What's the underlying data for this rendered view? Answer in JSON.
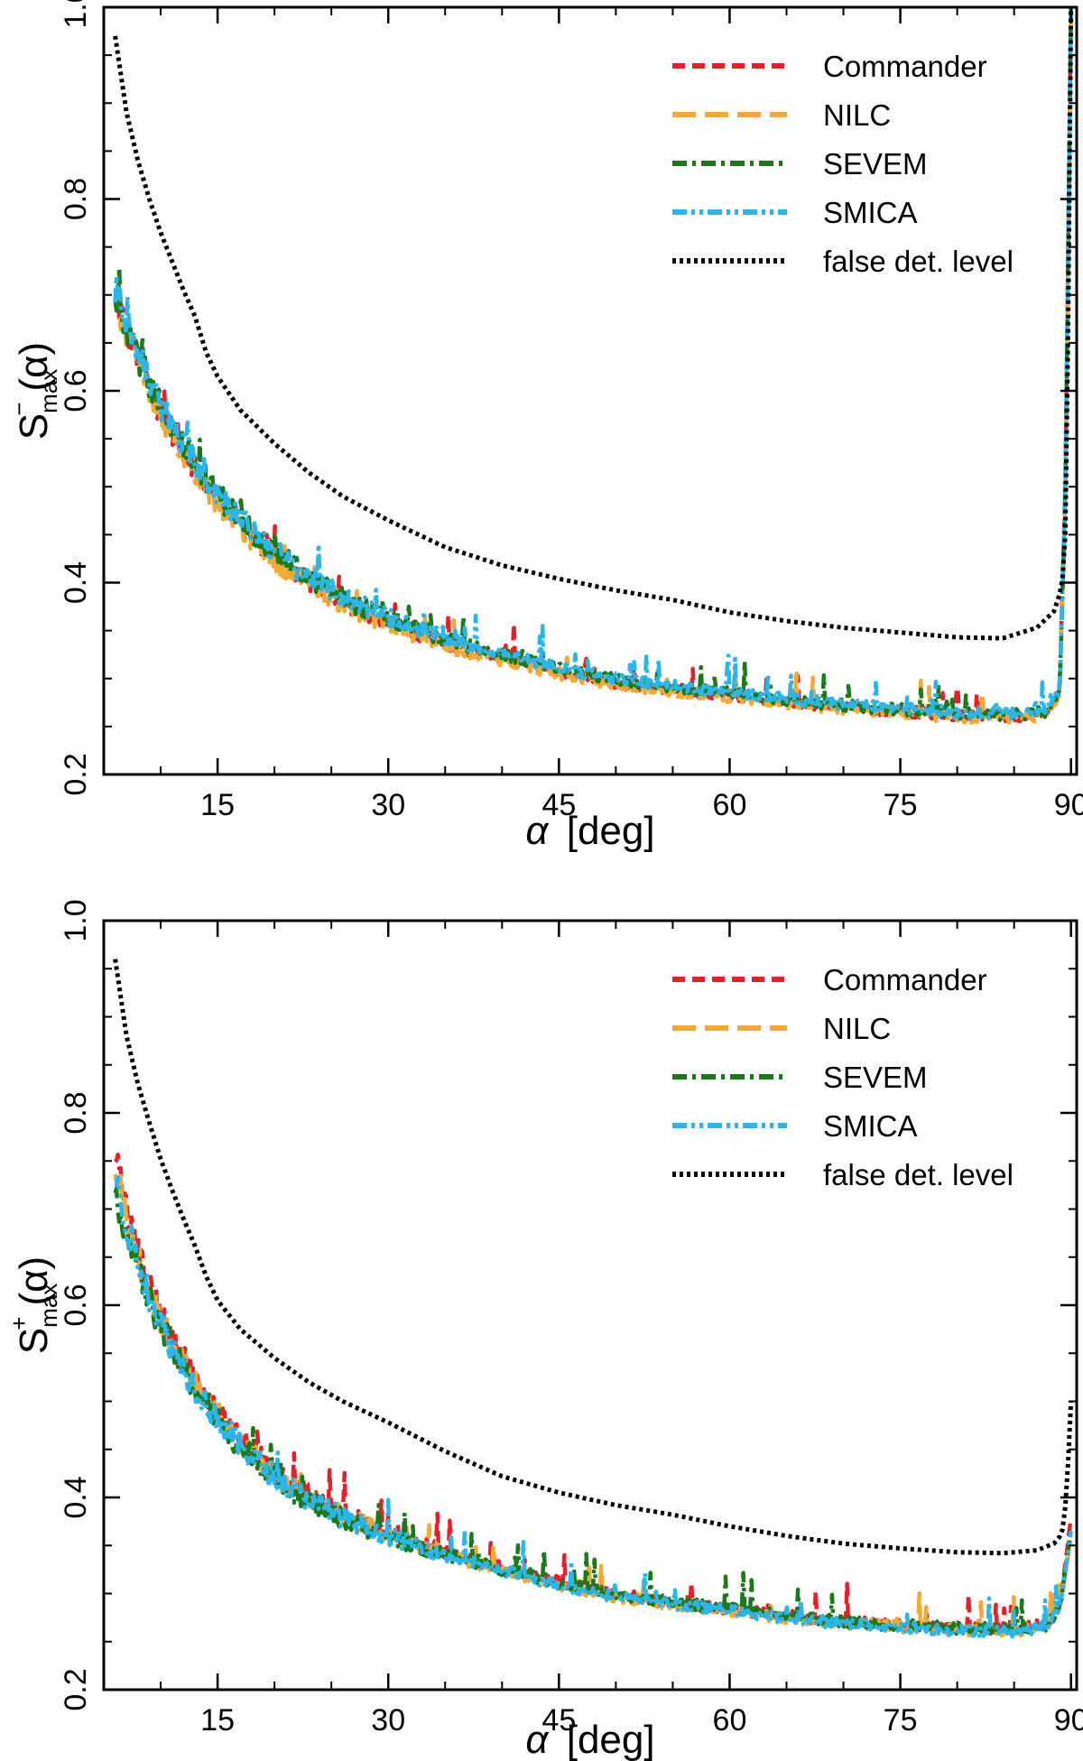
{
  "chart_data": [
    {
      "type": "line",
      "panel": "top",
      "title": "",
      "xlabel_symbol": "α",
      "xlabel_unit": "[deg]",
      "ylabel_base": "S",
      "ylabel_sub": "max",
      "ylabel_sup": "−",
      "ylabel_arg": "(α)",
      "xlim": [
        5,
        90.5
      ],
      "ylim": [
        0.2,
        1.0
      ],
      "xticks": [
        15,
        30,
        45,
        60,
        75,
        90
      ],
      "xtick_labels": [
        "15",
        "30",
        "45",
        "60",
        "75",
        "90"
      ],
      "yticks": [
        0.2,
        0.4,
        0.6,
        0.8,
        1.0
      ],
      "ytick_labels": [
        "0.2",
        "0.4",
        "0.6",
        "0.8",
        "1.0"
      ],
      "legend_position": "top-right",
      "series": [
        {
          "name": "Commander",
          "color": "#ee1c24",
          "style": "dashed",
          "x": [
            6,
            7,
            8,
            9,
            10,
            11,
            12,
            13,
            14,
            15,
            17,
            19,
            21,
            23,
            25,
            27,
            30,
            33,
            36,
            40,
            45,
            50,
            55,
            60,
            65,
            70,
            75,
            80,
            85,
            88,
            89,
            89.5,
            90
          ],
          "values": [
            0.7,
            0.665,
            0.635,
            0.605,
            0.58,
            0.56,
            0.54,
            0.522,
            0.505,
            0.49,
            0.462,
            0.44,
            0.42,
            0.403,
            0.388,
            0.375,
            0.36,
            0.346,
            0.334,
            0.322,
            0.307,
            0.296,
            0.289,
            0.283,
            0.276,
            0.27,
            0.266,
            0.262,
            0.26,
            0.265,
            0.285,
            0.5,
            1.0
          ]
        },
        {
          "name": "NILC",
          "color": "#f7a833",
          "style": "long-dashed",
          "x": [
            6,
            7,
            8,
            9,
            10,
            11,
            12,
            13,
            14,
            15,
            17,
            19,
            21,
            23,
            25,
            27,
            30,
            33,
            36,
            40,
            45,
            50,
            55,
            60,
            65,
            70,
            75,
            80,
            85,
            88,
            89,
            89.5,
            90
          ],
          "values": [
            0.695,
            0.66,
            0.63,
            0.6,
            0.576,
            0.555,
            0.536,
            0.518,
            0.501,
            0.486,
            0.458,
            0.436,
            0.416,
            0.4,
            0.385,
            0.372,
            0.357,
            0.343,
            0.331,
            0.319,
            0.305,
            0.294,
            0.287,
            0.281,
            0.274,
            0.268,
            0.264,
            0.26,
            0.258,
            0.262,
            0.28,
            0.48,
            1.0
          ]
        },
        {
          "name": "SEVEM",
          "color": "#1a7a1a",
          "style": "dash-dot",
          "x": [
            6,
            7,
            8,
            9,
            10,
            11,
            12,
            13,
            14,
            15,
            17,
            19,
            21,
            23,
            25,
            27,
            30,
            33,
            36,
            40,
            45,
            50,
            55,
            60,
            65,
            70,
            75,
            80,
            85,
            88,
            89,
            89.5,
            90
          ],
          "values": [
            0.705,
            0.668,
            0.638,
            0.608,
            0.583,
            0.562,
            0.543,
            0.525,
            0.508,
            0.493,
            0.465,
            0.443,
            0.423,
            0.406,
            0.391,
            0.378,
            0.363,
            0.349,
            0.337,
            0.325,
            0.31,
            0.299,
            0.291,
            0.285,
            0.278,
            0.272,
            0.268,
            0.264,
            0.262,
            0.266,
            0.288,
            0.49,
            1.0
          ]
        },
        {
          "name": "SMICA",
          "color": "#29b6ee",
          "style": "dash-dot-dot",
          "x": [
            6,
            7,
            8,
            9,
            10,
            11,
            12,
            13,
            14,
            15,
            17,
            19,
            21,
            23,
            25,
            27,
            30,
            33,
            36,
            40,
            45,
            50,
            55,
            60,
            65,
            70,
            75,
            80,
            85,
            88,
            89,
            89.5,
            90
          ],
          "values": [
            0.708,
            0.67,
            0.64,
            0.61,
            0.585,
            0.563,
            0.544,
            0.526,
            0.509,
            0.494,
            0.466,
            0.444,
            0.424,
            0.407,
            0.392,
            0.379,
            0.364,
            0.35,
            0.338,
            0.326,
            0.311,
            0.3,
            0.292,
            0.286,
            0.279,
            0.273,
            0.269,
            0.265,
            0.263,
            0.268,
            0.29,
            0.495,
            1.0
          ]
        },
        {
          "name": "false det. level",
          "color": "#000000",
          "style": "dotted",
          "x": [
            6,
            7,
            8,
            9,
            10,
            11,
            12,
            13,
            14,
            15,
            17,
            20,
            23,
            26,
            30,
            35,
            40,
            45,
            50,
            55,
            60,
            65,
            70,
            75,
            80,
            84,
            87,
            88.5,
            89.2,
            89.6,
            90
          ],
          "values": [
            0.97,
            0.89,
            0.84,
            0.8,
            0.765,
            0.735,
            0.705,
            0.678,
            0.64,
            0.615,
            0.58,
            0.545,
            0.515,
            0.49,
            0.465,
            0.437,
            0.418,
            0.404,
            0.392,
            0.382,
            0.369,
            0.36,
            0.353,
            0.348,
            0.343,
            0.342,
            0.353,
            0.37,
            0.395,
            0.47,
            1.0
          ]
        }
      ]
    },
    {
      "type": "line",
      "panel": "bottom",
      "title": "",
      "xlabel_symbol": "α",
      "xlabel_unit": "[deg]",
      "ylabel_base": "S",
      "ylabel_sub": "max",
      "ylabel_sup": "+",
      "ylabel_arg": "(α)",
      "xlim": [
        5,
        90.5
      ],
      "ylim": [
        0.2,
        1.0
      ],
      "xticks": [
        15,
        30,
        45,
        60,
        75,
        90
      ],
      "xtick_labels": [
        "15",
        "30",
        "45",
        "60",
        "75",
        "90"
      ],
      "yticks": [
        0.2,
        0.4,
        0.6,
        0.8,
        1.0
      ],
      "ytick_labels": [
        "0.2",
        "0.4",
        "0.6",
        "0.8",
        "1.0"
      ],
      "legend_position": "top-right",
      "series": [
        {
          "name": "Commander",
          "color": "#ee1c24",
          "style": "dashed",
          "x": [
            6,
            7,
            8,
            9,
            10,
            11,
            12,
            13,
            14,
            15,
            17,
            19,
            21,
            23,
            25,
            27,
            30,
            33,
            36,
            40,
            45,
            50,
            55,
            60,
            65,
            70,
            75,
            80,
            85,
            88,
            89,
            89.5,
            90
          ],
          "values": [
            0.76,
            0.7,
            0.655,
            0.62,
            0.59,
            0.565,
            0.543,
            0.522,
            0.504,
            0.488,
            0.46,
            0.437,
            0.418,
            0.402,
            0.389,
            0.378,
            0.364,
            0.352,
            0.34,
            0.327,
            0.312,
            0.299,
            0.291,
            0.284,
            0.277,
            0.271,
            0.267,
            0.264,
            0.263,
            0.268,
            0.29,
            0.33,
            0.38
          ]
        },
        {
          "name": "NILC",
          "color": "#f7a833",
          "style": "long-dashed",
          "x": [
            6,
            7,
            8,
            9,
            10,
            11,
            12,
            13,
            14,
            15,
            17,
            19,
            21,
            23,
            25,
            27,
            30,
            33,
            36,
            40,
            45,
            50,
            55,
            60,
            65,
            70,
            75,
            80,
            85,
            88,
            89,
            89.5,
            90
          ],
          "values": [
            0.745,
            0.69,
            0.648,
            0.614,
            0.585,
            0.56,
            0.538,
            0.518,
            0.5,
            0.484,
            0.456,
            0.434,
            0.415,
            0.399,
            0.386,
            0.375,
            0.361,
            0.349,
            0.337,
            0.324,
            0.309,
            0.297,
            0.289,
            0.282,
            0.275,
            0.269,
            0.265,
            0.262,
            0.261,
            0.266,
            0.285,
            0.32,
            0.36
          ]
        },
        {
          "name": "SEVEM",
          "color": "#1a7a1a",
          "style": "dash-dot",
          "x": [
            6,
            7,
            8,
            9,
            10,
            11,
            12,
            13,
            14,
            15,
            17,
            19,
            21,
            23,
            25,
            27,
            30,
            33,
            36,
            40,
            45,
            50,
            55,
            60,
            65,
            70,
            75,
            80,
            85,
            88,
            89,
            89.5,
            90
          ],
          "values": [
            0.72,
            0.675,
            0.638,
            0.606,
            0.578,
            0.554,
            0.533,
            0.514,
            0.497,
            0.481,
            0.453,
            0.431,
            0.412,
            0.397,
            0.384,
            0.373,
            0.36,
            0.348,
            0.337,
            0.325,
            0.311,
            0.299,
            0.291,
            0.284,
            0.277,
            0.271,
            0.267,
            0.264,
            0.263,
            0.267,
            0.287,
            0.325,
            0.37
          ]
        },
        {
          "name": "SMICA",
          "color": "#29b6ee",
          "style": "dash-dot-dot",
          "x": [
            6,
            7,
            8,
            9,
            10,
            11,
            12,
            13,
            14,
            15,
            17,
            19,
            21,
            23,
            25,
            27,
            30,
            33,
            36,
            40,
            45,
            50,
            55,
            60,
            65,
            70,
            75,
            80,
            85,
            88,
            89,
            89.5,
            90
          ],
          "values": [
            0.73,
            0.682,
            0.644,
            0.611,
            0.582,
            0.557,
            0.535,
            0.516,
            0.498,
            0.482,
            0.454,
            0.432,
            0.413,
            0.398,
            0.385,
            0.374,
            0.36,
            0.348,
            0.336,
            0.324,
            0.309,
            0.297,
            0.289,
            0.282,
            0.275,
            0.269,
            0.265,
            0.262,
            0.261,
            0.266,
            0.286,
            0.322,
            0.365
          ]
        },
        {
          "name": "false det. level",
          "color": "#000000",
          "style": "dotted",
          "x": [
            6,
            7,
            8,
            9,
            10,
            11,
            12,
            13,
            14,
            15,
            17,
            20,
            23,
            26,
            30,
            35,
            40,
            45,
            50,
            55,
            60,
            65,
            70,
            75,
            80,
            84,
            87,
            88.5,
            89.2,
            89.6,
            90
          ],
          "values": [
            0.96,
            0.88,
            0.83,
            0.79,
            0.752,
            0.72,
            0.69,
            0.662,
            0.63,
            0.605,
            0.575,
            0.545,
            0.52,
            0.5,
            0.478,
            0.448,
            0.422,
            0.405,
            0.392,
            0.382,
            0.37,
            0.36,
            0.352,
            0.347,
            0.343,
            0.342,
            0.345,
            0.352,
            0.362,
            0.4,
            0.5
          ]
        }
      ]
    }
  ]
}
